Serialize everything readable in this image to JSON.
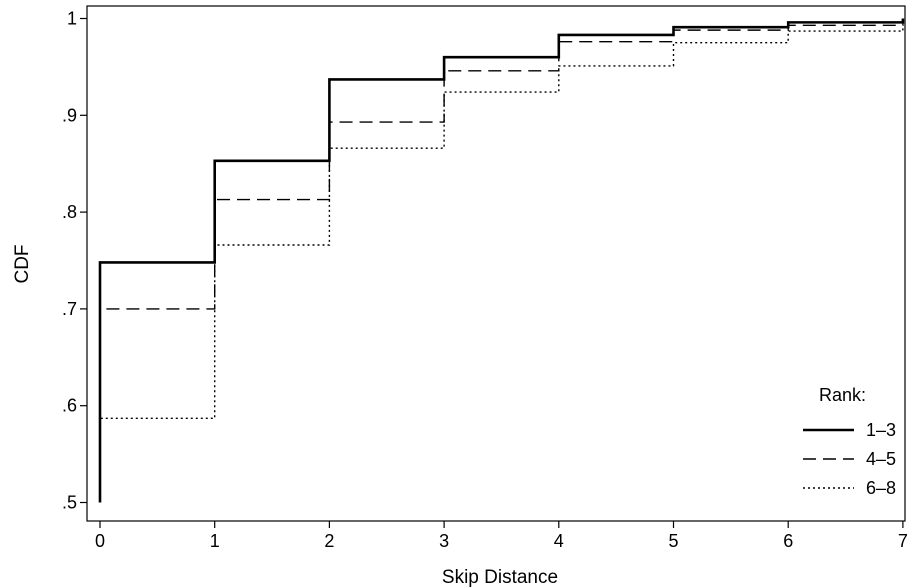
{
  "chart_data": {
    "type": "line",
    "step": true,
    "xlabel": "Skip Distance",
    "ylabel": "CDF",
    "xlim": [
      0,
      7
    ],
    "ylim": [
      0.5,
      1.0
    ],
    "x_ticks": [
      0,
      1,
      2,
      3,
      4,
      5,
      6,
      7
    ],
    "x_tick_labels": [
      "0",
      "1",
      "2",
      "3",
      "4",
      "5",
      "6",
      "7"
    ],
    "y_ticks": [
      0.5,
      0.6,
      0.7,
      0.8,
      0.9,
      1.0
    ],
    "y_tick_labels": [
      ".5",
      ".6",
      ".7",
      ".8",
      ".9",
      "1"
    ],
    "grid": false,
    "legend": {
      "title": "Rank:",
      "placement": "bottom-right"
    },
    "x": [
      0,
      1,
      2,
      3,
      4,
      5,
      6,
      7
    ],
    "series": [
      {
        "name": "1–3",
        "style": "solid",
        "color": "#000000",
        "values": [
          0.748,
          0.853,
          0.937,
          0.96,
          0.983,
          0.991,
          0.996,
          1.0
        ]
      },
      {
        "name": "4–5",
        "style": "dashed",
        "color": "#000000",
        "values": [
          0.7,
          0.813,
          0.893,
          0.946,
          0.976,
          0.988,
          0.993,
          0.998
        ]
      },
      {
        "name": "6–8",
        "style": "dotted",
        "color": "#000000",
        "values": [
          0.587,
          0.766,
          0.866,
          0.924,
          0.951,
          0.975,
          0.987,
          0.991
        ]
      }
    ]
  }
}
